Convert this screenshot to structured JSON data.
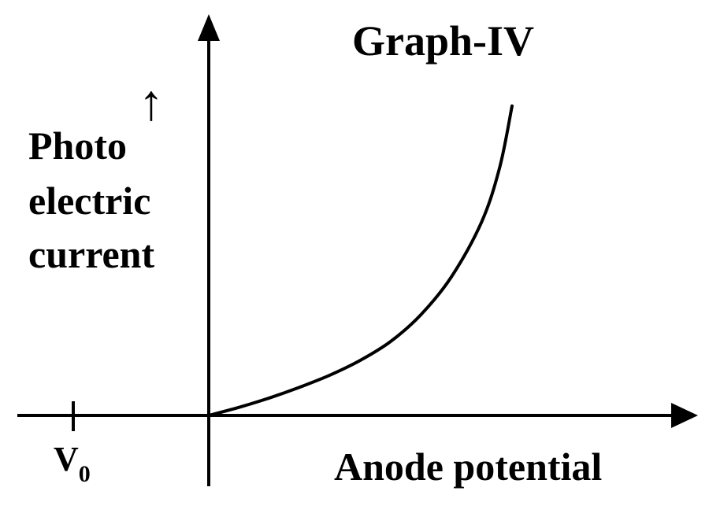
{
  "chart_data": {
    "type": "line",
    "title": "Graph-IV",
    "xlabel": "Anode potential",
    "ylabel": {
      "lines": [
        "Photo",
        "electric",
        "current"
      ],
      "arrow": "↑"
    },
    "x_tick": {
      "symbol": "V",
      "subscript": "0"
    },
    "grid": false,
    "series": [
      {
        "points": [
          {
            "x": 0.0,
            "y": 0.0
          },
          {
            "x": 0.1,
            "y": 0.06
          },
          {
            "x": 0.2,
            "y": 0.13
          },
          {
            "x": 0.3,
            "y": 0.21
          },
          {
            "x": 0.4,
            "y": 0.3
          },
          {
            "x": 0.5,
            "y": 0.41
          },
          {
            "x": 0.6,
            "y": 0.55
          },
          {
            "x": 0.7,
            "y": 0.75
          },
          {
            "x": 0.8,
            "y": 1.03
          },
          {
            "x": 0.9,
            "y": 1.44
          },
          {
            "x": 0.96,
            "y": 1.85
          },
          {
            "x": 1.0,
            "y": 2.3
          }
        ]
      }
    ],
    "colors": {
      "line": "#000000",
      "background": "#ffffff"
    }
  }
}
